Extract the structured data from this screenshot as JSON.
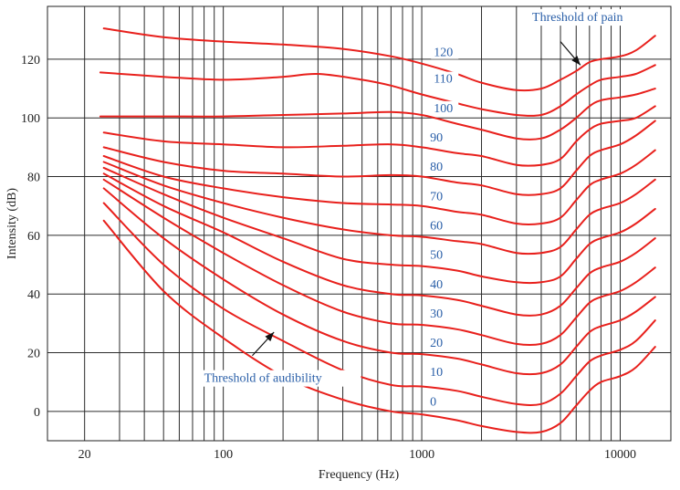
{
  "chart_data": {
    "type": "line",
    "title": "",
    "xlabel": "Frequency (Hz)",
    "ylabel": "Intensity (dB)",
    "xscale": "log",
    "xlim": [
      13,
      18000
    ],
    "ylim": [
      -10,
      138
    ],
    "grid": true,
    "x_ticks": [
      {
        "value": 20,
        "label": "20"
      },
      {
        "value": 100,
        "label": "100"
      },
      {
        "value": 1000,
        "label": "1000"
      },
      {
        "value": 10000,
        "label": "10000"
      }
    ],
    "y_ticks": [
      {
        "value": 0,
        "label": "0"
      },
      {
        "value": 20,
        "label": "20"
      },
      {
        "value": 40,
        "label": "40"
      },
      {
        "value": 60,
        "label": "60"
      },
      {
        "value": 80,
        "label": "80"
      },
      {
        "value": 100,
        "label": "100"
      },
      {
        "value": 120,
        "label": "120"
      }
    ],
    "x_gridlines": [
      20,
      30,
      40,
      50,
      60,
      70,
      80,
      90,
      100,
      200,
      300,
      400,
      500,
      600,
      700,
      800,
      900,
      1000,
      2000,
      3000,
      4000,
      5000,
      6000,
      7000,
      8000,
      9000,
      10000
    ],
    "y_gridlines": [
      0,
      20,
      40,
      60,
      80,
      100,
      120
    ],
    "line_color": "#e8201c",
    "label_color": "#2a5fa8",
    "series": [
      {
        "name": "0",
        "points": [
          [
            25,
            65
          ],
          [
            50,
            41
          ],
          [
            100,
            25
          ],
          [
            200,
            12
          ],
          [
            400,
            4
          ],
          [
            700,
            0
          ],
          [
            1000,
            -1
          ],
          [
            1500,
            -3
          ],
          [
            2000,
            -5
          ],
          [
            3000,
            -7
          ],
          [
            4000,
            -7
          ],
          [
            5000,
            -4
          ],
          [
            6000,
            2
          ],
          [
            7000,
            7
          ],
          [
            8000,
            10
          ],
          [
            10000,
            12
          ],
          [
            12000,
            15
          ],
          [
            15000,
            22
          ]
        ]
      },
      {
        "name": "10",
        "points": [
          [
            25,
            71
          ],
          [
            50,
            50
          ],
          [
            100,
            35
          ],
          [
            200,
            24
          ],
          [
            400,
            14
          ],
          [
            700,
            9
          ],
          [
            1000,
            8.5
          ],
          [
            1500,
            7
          ],
          [
            2000,
            5
          ],
          [
            3000,
            2.5
          ],
          [
            4000,
            2.5
          ],
          [
            5000,
            6
          ],
          [
            6000,
            12
          ],
          [
            7000,
            17
          ],
          [
            8000,
            19
          ],
          [
            10000,
            21
          ],
          [
            12000,
            24
          ],
          [
            15000,
            31
          ]
        ]
      },
      {
        "name": "20",
        "points": [
          [
            25,
            76
          ],
          [
            50,
            59
          ],
          [
            100,
            45
          ],
          [
            200,
            33
          ],
          [
            400,
            24
          ],
          [
            700,
            20
          ],
          [
            1000,
            19.5
          ],
          [
            1500,
            18
          ],
          [
            2000,
            16
          ],
          [
            3000,
            13
          ],
          [
            4000,
            13
          ],
          [
            5000,
            16
          ],
          [
            6000,
            22
          ],
          [
            7000,
            27
          ],
          [
            8000,
            29
          ],
          [
            10000,
            31
          ],
          [
            12000,
            34
          ],
          [
            15000,
            39
          ]
        ]
      },
      {
        "name": "30",
        "points": [
          [
            25,
            79
          ],
          [
            50,
            66
          ],
          [
            100,
            54
          ],
          [
            200,
            43
          ],
          [
            400,
            34
          ],
          [
            700,
            30
          ],
          [
            1000,
            29.5
          ],
          [
            1500,
            28
          ],
          [
            2000,
            26
          ],
          [
            3000,
            23
          ],
          [
            4000,
            23
          ],
          [
            5000,
            26
          ],
          [
            6000,
            32
          ],
          [
            7000,
            37
          ],
          [
            8000,
            39
          ],
          [
            10000,
            41
          ],
          [
            12000,
            44
          ],
          [
            15000,
            49
          ]
        ]
      },
      {
        "name": "40",
        "points": [
          [
            25,
            81
          ],
          [
            50,
            70
          ],
          [
            100,
            61
          ],
          [
            200,
            51
          ],
          [
            400,
            43
          ],
          [
            700,
            40
          ],
          [
            1000,
            39.5
          ],
          [
            1500,
            38
          ],
          [
            2000,
            36
          ],
          [
            3000,
            33
          ],
          [
            4000,
            33
          ],
          [
            5000,
            36
          ],
          [
            6000,
            42
          ],
          [
            7000,
            47
          ],
          [
            8000,
            49
          ],
          [
            10000,
            51
          ],
          [
            12000,
            54
          ],
          [
            15000,
            59
          ]
        ]
      },
      {
        "name": "50",
        "points": [
          [
            25,
            83
          ],
          [
            50,
            74
          ],
          [
            100,
            66
          ],
          [
            200,
            59
          ],
          [
            400,
            52
          ],
          [
            700,
            50
          ],
          [
            1000,
            49.5
          ],
          [
            1500,
            48
          ],
          [
            2000,
            46
          ],
          [
            3000,
            44
          ],
          [
            4000,
            44
          ],
          [
            5000,
            46
          ],
          [
            6000,
            52
          ],
          [
            7000,
            57
          ],
          [
            8000,
            59
          ],
          [
            10000,
            61
          ],
          [
            12000,
            64
          ],
          [
            15000,
            69
          ]
        ]
      },
      {
        "name": "60",
        "points": [
          [
            25,
            85
          ],
          [
            50,
            77
          ],
          [
            100,
            71
          ],
          [
            200,
            66
          ],
          [
            400,
            62
          ],
          [
            700,
            60
          ],
          [
            1000,
            59.5
          ],
          [
            1500,
            58
          ],
          [
            2000,
            57
          ],
          [
            3000,
            54
          ],
          [
            4000,
            54
          ],
          [
            5000,
            56
          ],
          [
            6000,
            62
          ],
          [
            7000,
            67
          ],
          [
            8000,
            69
          ],
          [
            10000,
            71
          ],
          [
            12000,
            74
          ],
          [
            15000,
            79
          ]
        ]
      },
      {
        "name": "70",
        "points": [
          [
            25,
            87
          ],
          [
            50,
            80
          ],
          [
            100,
            76
          ],
          [
            200,
            73
          ],
          [
            400,
            71
          ],
          [
            700,
            70.5
          ],
          [
            1000,
            70
          ],
          [
            1500,
            68
          ],
          [
            2000,
            67
          ],
          [
            3000,
            64
          ],
          [
            4000,
            64
          ],
          [
            5000,
            66
          ],
          [
            6000,
            72
          ],
          [
            7000,
            77
          ],
          [
            8000,
            79
          ],
          [
            10000,
            81
          ],
          [
            12000,
            84
          ],
          [
            15000,
            89
          ]
        ]
      },
      {
        "name": "80",
        "points": [
          [
            25,
            90
          ],
          [
            50,
            85
          ],
          [
            100,
            82
          ],
          [
            200,
            81
          ],
          [
            400,
            80
          ],
          [
            700,
            80.5
          ],
          [
            1000,
            80
          ],
          [
            1500,
            78
          ],
          [
            2000,
            77
          ],
          [
            3000,
            74
          ],
          [
            4000,
            74
          ],
          [
            5000,
            76
          ],
          [
            6000,
            82
          ],
          [
            7000,
            87
          ],
          [
            8000,
            89
          ],
          [
            10000,
            91
          ],
          [
            12000,
            94
          ],
          [
            15000,
            99
          ]
        ]
      },
      {
        "name": "90",
        "points": [
          [
            25,
            95
          ],
          [
            50,
            92
          ],
          [
            100,
            91
          ],
          [
            200,
            90
          ],
          [
            400,
            90.5
          ],
          [
            700,
            91
          ],
          [
            1000,
            90
          ],
          [
            1500,
            88
          ],
          [
            2000,
            87
          ],
          [
            3000,
            84
          ],
          [
            4000,
            84
          ],
          [
            5000,
            86
          ],
          [
            6000,
            92
          ],
          [
            7000,
            96
          ],
          [
            8000,
            98
          ],
          [
            10000,
            99
          ],
          [
            12000,
            100
          ],
          [
            15000,
            104
          ]
        ]
      },
      {
        "name": "100",
        "points": [
          [
            24,
            100.5
          ],
          [
            50,
            100.5
          ],
          [
            100,
            100.5
          ],
          [
            200,
            101
          ],
          [
            400,
            101.5
          ],
          [
            700,
            102
          ],
          [
            1000,
            101
          ],
          [
            1500,
            98
          ],
          [
            2000,
            96
          ],
          [
            3000,
            93
          ],
          [
            4000,
            93
          ],
          [
            5000,
            96
          ],
          [
            6000,
            100
          ],
          [
            7000,
            104
          ],
          [
            8000,
            106
          ],
          [
            10000,
            107
          ],
          [
            12000,
            108
          ],
          [
            15000,
            110
          ]
        ]
      },
      {
        "name": "110",
        "points": [
          [
            24,
            115.5
          ],
          [
            50,
            114
          ],
          [
            100,
            113
          ],
          [
            200,
            114
          ],
          [
            300,
            115
          ],
          [
            500,
            113
          ],
          [
            700,
            111
          ],
          [
            1000,
            108
          ],
          [
            1500,
            105
          ],
          [
            2000,
            103
          ],
          [
            3000,
            101
          ],
          [
            4000,
            101
          ],
          [
            5000,
            104
          ],
          [
            6000,
            108
          ],
          [
            7000,
            111
          ],
          [
            8000,
            113
          ],
          [
            10000,
            114
          ],
          [
            12000,
            115
          ],
          [
            15000,
            118
          ]
        ]
      },
      {
        "name": "120",
        "points": [
          [
            25,
            130.5
          ],
          [
            50,
            127.5
          ],
          [
            100,
            126
          ],
          [
            200,
            125
          ],
          [
            400,
            123.5
          ],
          [
            700,
            121
          ],
          [
            1000,
            118.5
          ],
          [
            1500,
            115
          ],
          [
            2000,
            112
          ],
          [
            3000,
            109.5
          ],
          [
            4000,
            110
          ],
          [
            5000,
            113
          ],
          [
            6000,
            116
          ],
          [
            7000,
            119
          ],
          [
            8000,
            120
          ],
          [
            10000,
            121
          ],
          [
            12000,
            123
          ],
          [
            15000,
            128
          ]
        ]
      }
    ],
    "curve_labels": [
      {
        "text": "0",
        "x": 1100,
        "y": 2
      },
      {
        "text": "10",
        "x": 1100,
        "y": 12
      },
      {
        "text": "20",
        "x": 1100,
        "y": 22
      },
      {
        "text": "30",
        "x": 1100,
        "y": 32
      },
      {
        "text": "40",
        "x": 1100,
        "y": 42
      },
      {
        "text": "50",
        "x": 1100,
        "y": 52
      },
      {
        "text": "60",
        "x": 1100,
        "y": 62
      },
      {
        "text": "70",
        "x": 1100,
        "y": 72
      },
      {
        "text": "80",
        "x": 1100,
        "y": 82
      },
      {
        "text": "90",
        "x": 1100,
        "y": 92
      },
      {
        "text": "100",
        "x": 1150,
        "y": 102
      },
      {
        "text": "110",
        "x": 1150,
        "y": 112
      },
      {
        "text": "120",
        "x": 1150,
        "y": 121
      }
    ],
    "annotations": [
      {
        "text": "Threshold of pain",
        "x": 3600,
        "y": 133,
        "arrow_from": [
          5000,
          126
        ],
        "arrow_to": [
          6300,
          118
        ]
      },
      {
        "text": "Threshold of audibility",
        "x": 80,
        "y": 10,
        "arrow_from": [
          140,
          19
        ],
        "arrow_to": [
          180,
          27
        ]
      }
    ]
  }
}
